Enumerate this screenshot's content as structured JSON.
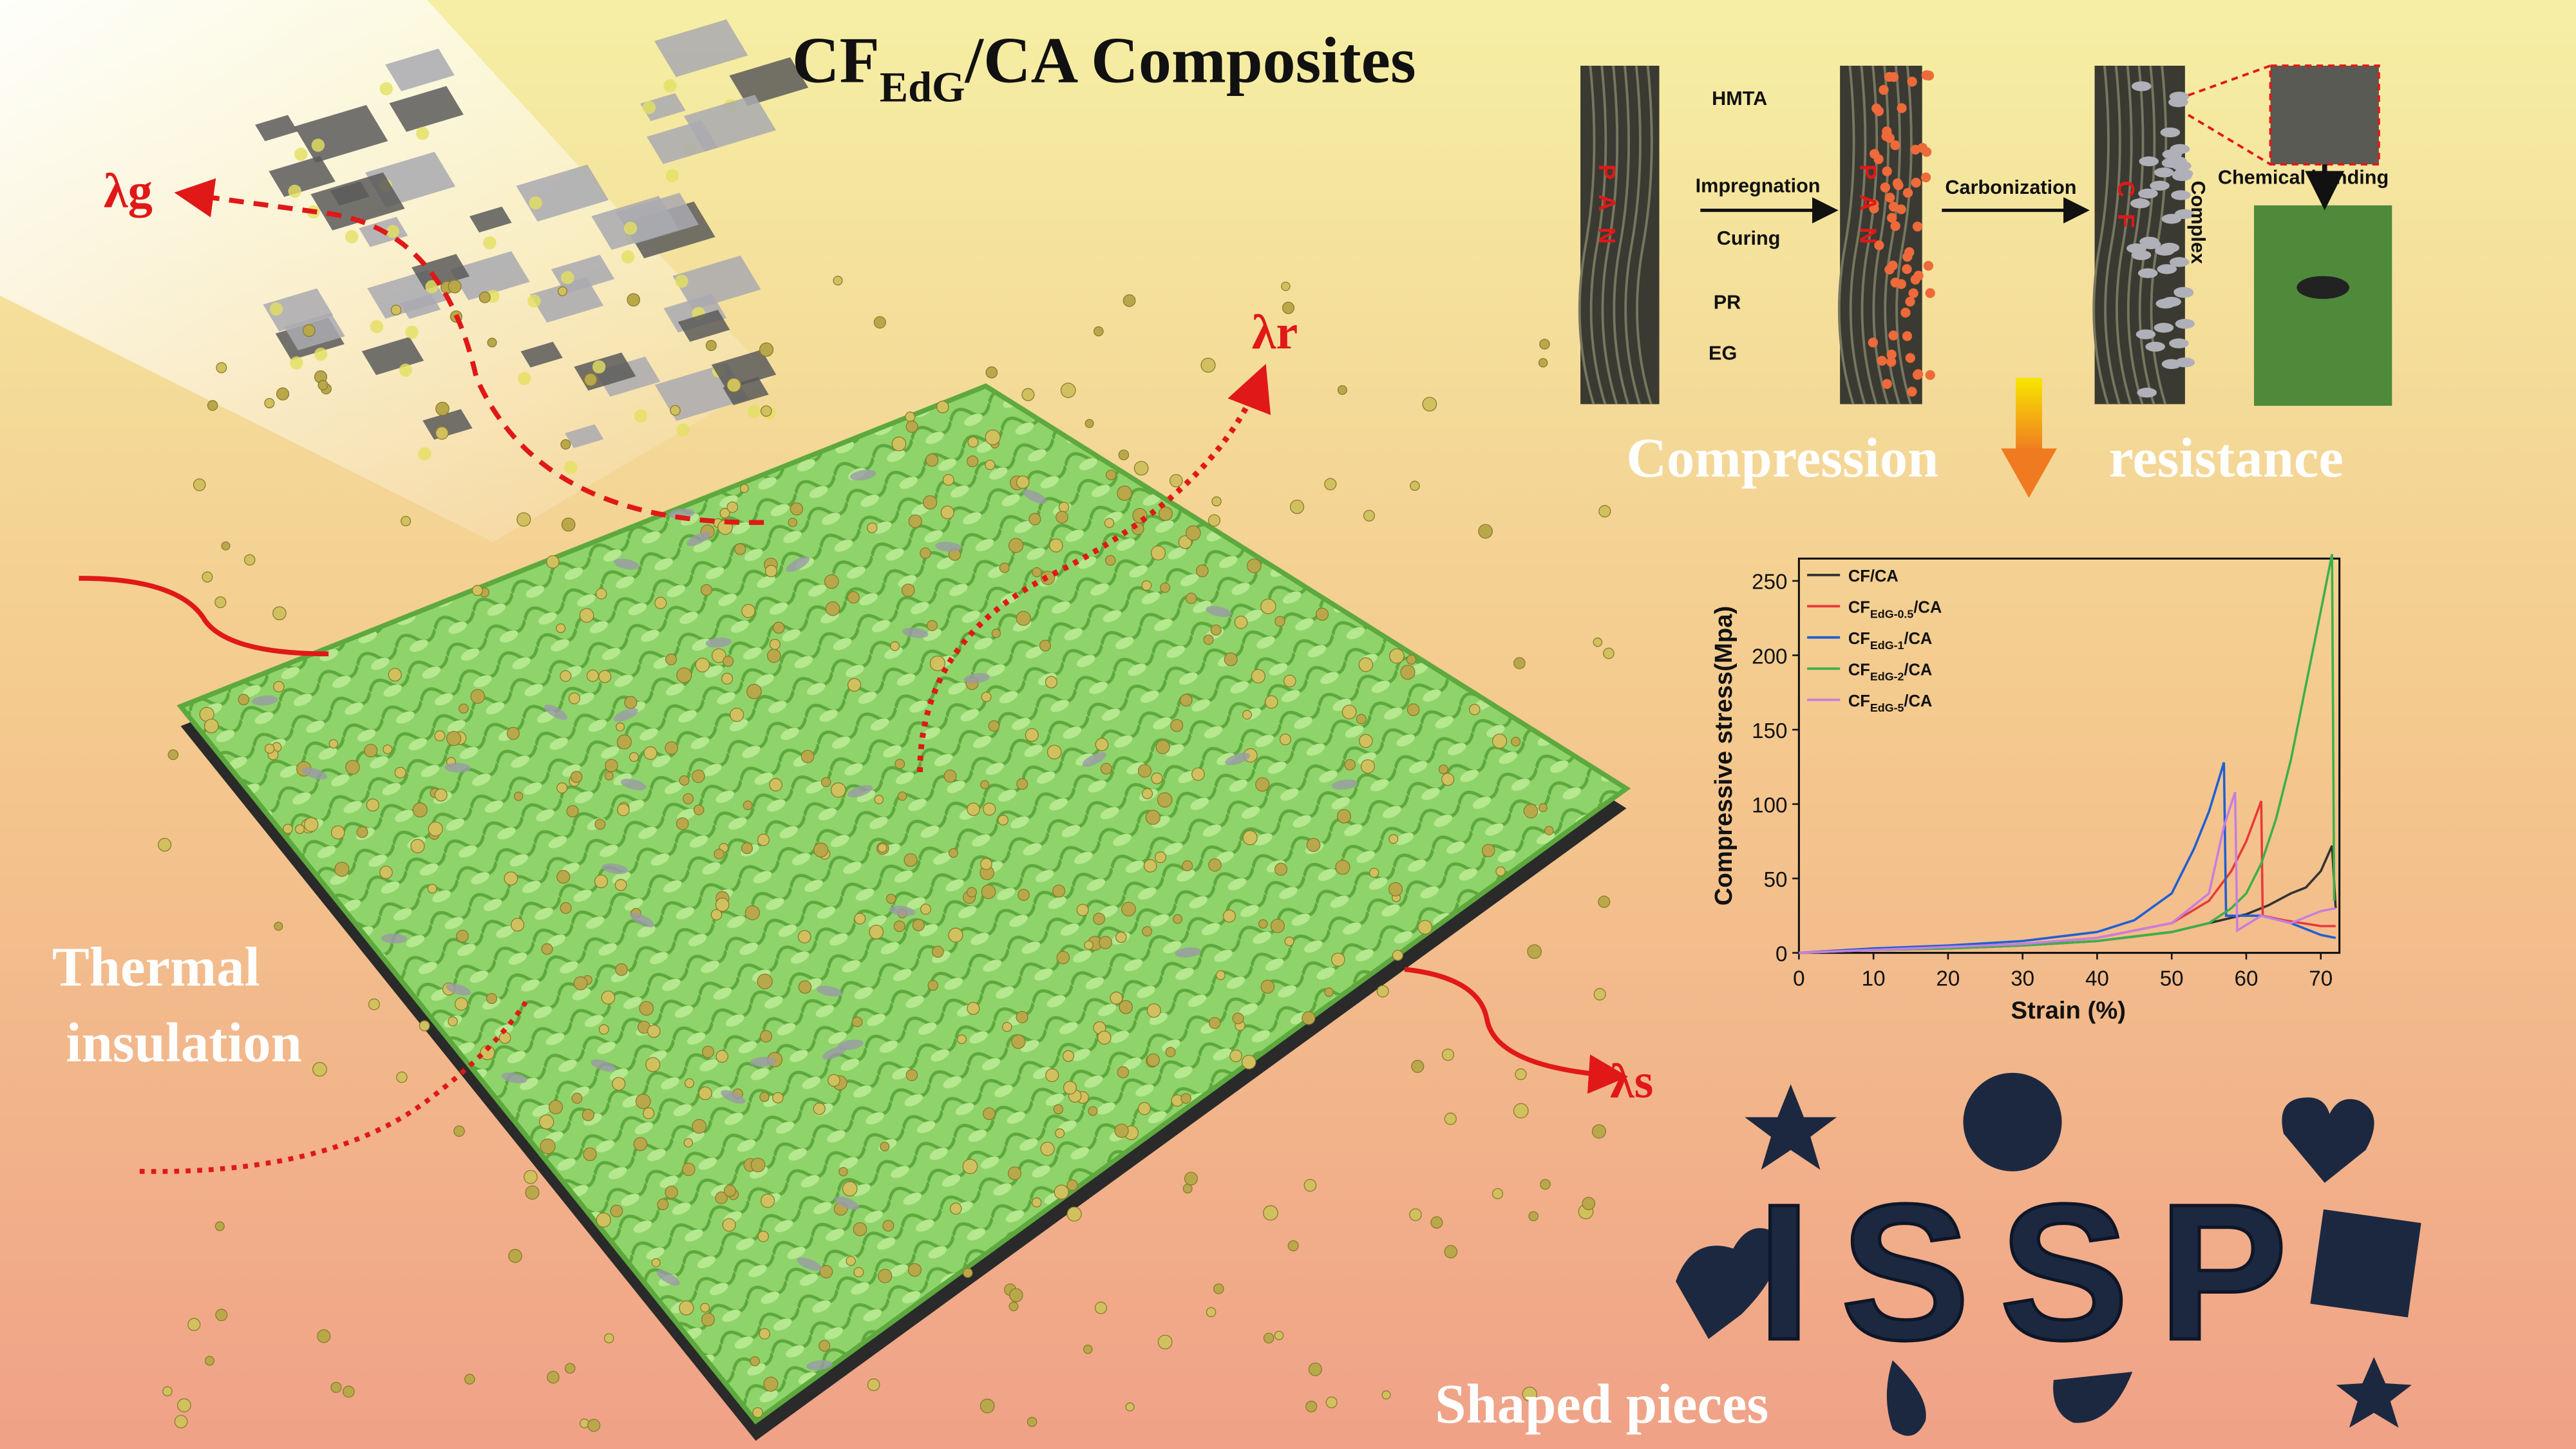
{
  "title": [
    "CF",
    "EdG",
    "/CA  Composites"
  ],
  "lambda_g": "λg",
  "lambda_r": "λr",
  "lambda_s": "λs",
  "thermal": [
    "Thermal",
    "insulation"
  ],
  "compression": [
    "Compression",
    "resistance"
  ],
  "shaped_pieces": "Shaped pieces",
  "issp": "ISSP",
  "schematic": {
    "hmta": "HMTA",
    "impregnation": "Impregnation",
    "curing": "Curing",
    "pr": "PR",
    "eg": "EG",
    "carbonization": "Carbonization",
    "complex": "Complex",
    "chemical_bonding": "Chemical  bonding",
    "pan": "PAN",
    "cf": "CF"
  },
  "chart_data": {
    "type": "line",
    "x_label": "Strain (%)",
    "y_label": "Compressive stress(Mpa)",
    "xlim": [
      0,
      72.5
    ],
    "ylim": [
      0,
      265
    ],
    "xticks": [
      0,
      10,
      20,
      30,
      40,
      50,
      60,
      70
    ],
    "yticks": [
      0,
      50,
      100,
      150,
      200,
      250
    ],
    "series": [
      {
        "name": "CF/CA",
        "color": "#333333",
        "x": [
          0,
          10,
          20,
          30,
          40,
          50,
          55,
          60,
          63,
          66,
          68,
          70,
          71.5,
          72
        ],
        "values": [
          0,
          2,
          3,
          5,
          8,
          14,
          20,
          26,
          32,
          40,
          44,
          55,
          72,
          30
        ]
      },
      {
        "name": [
          "CF",
          "EdG-0.5",
          "/CA"
        ],
        "color": "#e83a3a",
        "x": [
          0,
          10,
          20,
          30,
          40,
          50,
          55,
          58,
          60,
          62,
          62.2,
          65,
          70,
          72
        ],
        "values": [
          0,
          2,
          4,
          6,
          10,
          20,
          35,
          55,
          75,
          102,
          25,
          22,
          18,
          18
        ]
      },
      {
        "name": [
          "CF",
          "EdG-1",
          "/CA"
        ],
        "color": "#1f5fd6",
        "x": [
          0,
          10,
          20,
          30,
          40,
          45,
          50,
          53,
          55,
          57,
          57.3,
          62,
          66,
          70,
          72
        ],
        "values": [
          0,
          3,
          5,
          8,
          14,
          22,
          40,
          70,
          95,
          128,
          25,
          25,
          20,
          12,
          10
        ]
      },
      {
        "name": [
          "CF",
          "EdG-2",
          "/CA"
        ],
        "color": "#3cb04a",
        "x": [
          0,
          10,
          20,
          30,
          40,
          50,
          55,
          58,
          60,
          62,
          64,
          66,
          68,
          70,
          71.5,
          71.8
        ],
        "values": [
          0,
          2,
          3,
          5,
          8,
          14,
          20,
          30,
          40,
          60,
          90,
          130,
          180,
          230,
          268,
          35
        ]
      },
      {
        "name": [
          "CF",
          "EdG-5",
          "/CA"
        ],
        "color": "#c77ee0",
        "x": [
          0,
          10,
          20,
          30,
          40,
          50,
          55,
          57,
          58.5,
          58.8,
          62,
          66,
          70,
          72
        ],
        "values": [
          0,
          2,
          4,
          6,
          10,
          20,
          40,
          85,
          108,
          15,
          25,
          20,
          28,
          30
        ]
      }
    ]
  }
}
